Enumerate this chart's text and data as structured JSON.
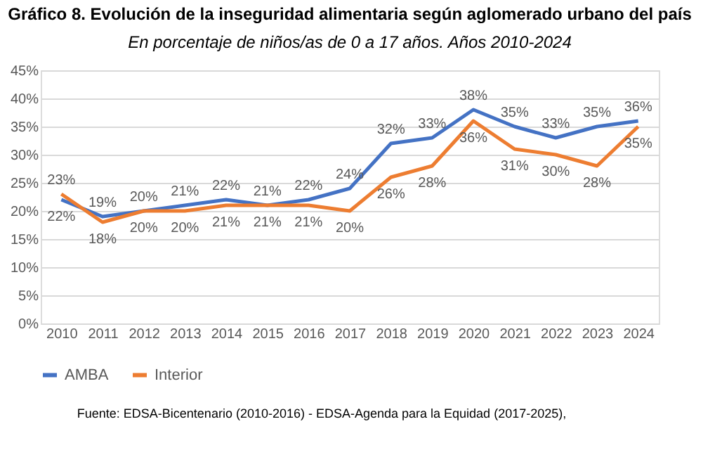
{
  "chart_data": {
    "type": "line",
    "title": "Gráfico 8. Evolución de la inseguridad alimentaria según aglomerado urbano del país",
    "subtitle": "En porcentaje de niños/as de 0 a 17 años. Años 2010-2024",
    "categories": [
      "2010",
      "2011",
      "2012",
      "2013",
      "2014",
      "2015",
      "2016",
      "2017",
      "2018",
      "2019",
      "2020",
      "2021",
      "2022",
      "2023",
      "2024"
    ],
    "series": [
      {
        "name": "AMBA",
        "color": "#4472c4",
        "values": [
          22,
          19,
          20,
          21,
          22,
          21,
          22,
          24,
          32,
          33,
          38,
          35,
          33,
          35,
          36
        ],
        "value_labels": [
          "22%",
          "19%",
          "20%",
          "21%",
          "22%",
          "21%",
          "22%",
          "24%",
          "32%",
          "33%",
          "38%",
          "35%",
          "33%",
          "35%",
          "36%"
        ]
      },
      {
        "name": "Interior",
        "color": "#ed7d31",
        "values": [
          23,
          18,
          20,
          20,
          21,
          21,
          21,
          20,
          26,
          28,
          36,
          31,
          30,
          28,
          35
        ],
        "value_labels": [
          "23%",
          "18%",
          "20%",
          "20%",
          "21%",
          "21%",
          "21%",
          "20%",
          "26%",
          "28%",
          "36%",
          "31%",
          "30%",
          "28%",
          "35%"
        ]
      }
    ],
    "ylim": [
      0,
      45
    ],
    "yticks": [
      {
        "value": 0,
        "label": "0%"
      },
      {
        "value": 5,
        "label": "5%"
      },
      {
        "value": 10,
        "label": "10%"
      },
      {
        "value": 15,
        "label": "15%"
      },
      {
        "value": 20,
        "label": "20%"
      },
      {
        "value": 25,
        "label": "25%"
      },
      {
        "value": 30,
        "label": "30%"
      },
      {
        "value": 35,
        "label": "35%"
      },
      {
        "value": 40,
        "label": "40%"
      },
      {
        "value": 45,
        "label": "45%"
      }
    ],
    "grid": "y",
    "legend": "bottom",
    "data_labels": true,
    "marker": "none",
    "line_style": "solid",
    "annotations": [
      "Fuente: EDSA-Bicentenario (2010-2016) - EDSA-Agenda para la Equidad (2017-2025),"
    ]
  }
}
